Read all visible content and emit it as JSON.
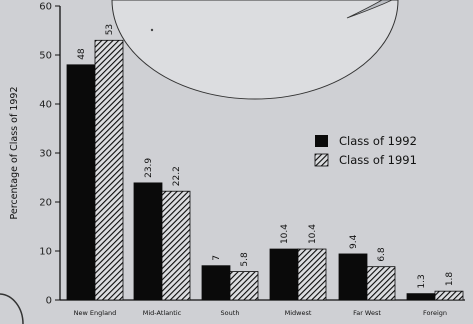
{
  "chart_data": {
    "type": "bar",
    "title": "",
    "xlabel": "",
    "ylabel": "Percentage of Class of 1992",
    "ylim": [
      0,
      60
    ],
    "yticks": [
      0,
      10,
      20,
      30,
      40,
      50,
      60
    ],
    "categories": [
      "New England",
      "Mid-Atlantic",
      "South",
      "Midwest",
      "Far West",
      "Foreign"
    ],
    "series": [
      {
        "name": "Class of 1992",
        "values": [
          48,
          23.9,
          7,
          10.4,
          9.4,
          1.3
        ],
        "value_labels": [
          "48",
          "23.9",
          "7",
          "10.4",
          "9.4",
          "1.3"
        ],
        "color": "#0a0a0a",
        "pattern": "solid"
      },
      {
        "name": "Class of 1991",
        "values": [
          53,
          22.2,
          5.8,
          10.4,
          6.8,
          1.8
        ],
        "value_labels": [
          "53",
          "22.2",
          "5.8",
          "10.4",
          "6.8",
          "1.8"
        ],
        "color": "#0a0a0a",
        "pattern": "diagonal-hatch"
      }
    ],
    "legend_position": "right",
    "grid": false
  },
  "colors": {
    "background": "#cfd0d4",
    "pie_fill": "#dcdde0",
    "bar": "#0a0a0a"
  }
}
